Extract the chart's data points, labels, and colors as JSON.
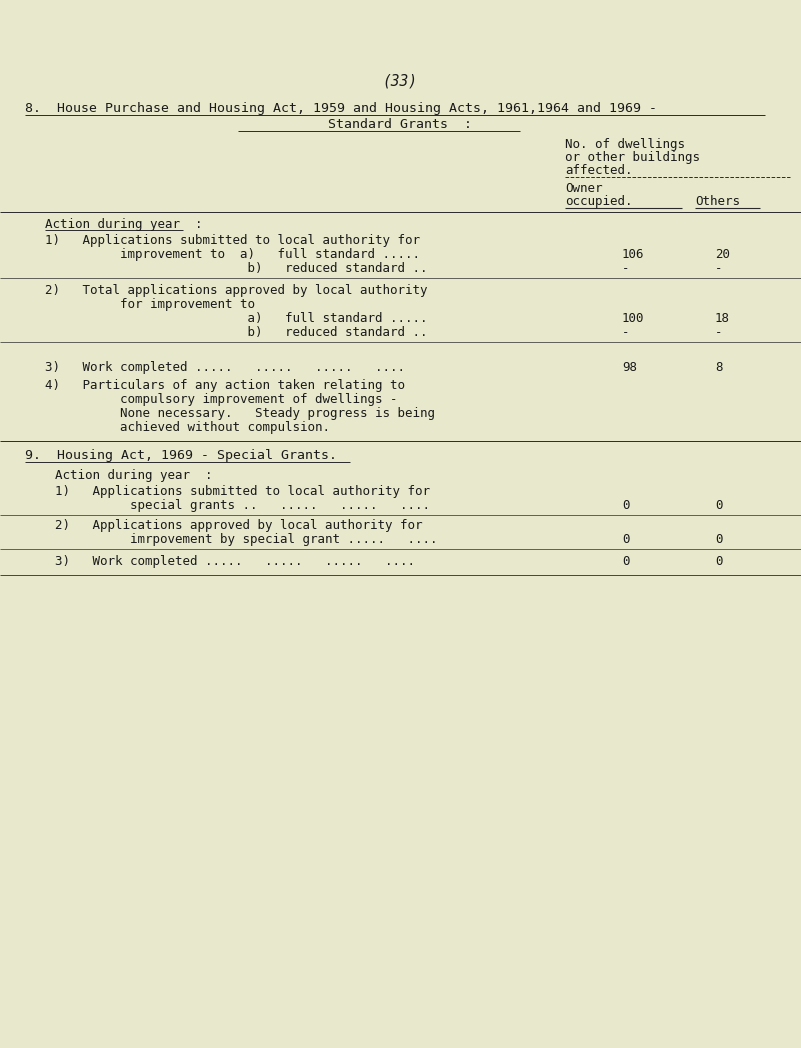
{
  "bg_color": "#e8e8cc",
  "text_color": "#1a1a1a",
  "page_number": "(33)",
  "section8_title": "8.  House Purchase and Housing Act, 1959 and Housing Acts, 1961,1964 and 1969 -",
  "section8_subtitle": "Standard Grants  :",
  "col_header_line1": "No. of dwellings",
  "col_header_line2": "or other buildings",
  "col_header_line3": "affected.",
  "col_owner": "Owner",
  "col_occupied": "occupied.",
  "col_others": "Others",
  "action_during_year": "Action during year  :",
  "item1_line1": "1)   Applications submitted to local authority for",
  "item1_line2a": "          improvement to  a)   full standard .....",
  "item1_line2b": "                           b)   reduced standard ..",
  "item1a_owner": "106",
  "item1a_others": "20",
  "item1b_owner": "-",
  "item1b_others": "-",
  "item2_line1": "2)   Total applications approved by local authority",
  "item2_line2": "          for improvement to",
  "item2_line3a": "                           a)   full standard .....",
  "item2_line3b": "                           b)   reduced standard ..",
  "item2a_owner": "100",
  "item2a_others": "18",
  "item2b_owner": "-",
  "item2b_others": "-",
  "item3_line1": "3)   Work completed .....   .....   .....   ....",
  "item3_owner": "98",
  "item3_others": "8",
  "item4_line1": "4)   Particulars of any action taken relating to",
  "item4_line2": "          compulsory improvement of dwellings -",
  "item4_line3": "          None necessary.   Steady progress is being",
  "item4_line4": "          achieved without compulsion.",
  "section9_title": "9.  Housing Act, 1969 - Special Grants.",
  "action_during_year2": "Action during year  :",
  "s9_item1_line1": "1)   Applications submitted to local authority for",
  "s9_item1_line2": "          special grants ..   .....   .....   ....",
  "s9_item1_owner": "0",
  "s9_item1_others": "0",
  "s9_item2_line1": "2)   Applications approved by local authority for",
  "s9_item2_line2": "          imrpovement by special grant .....   ....",
  "s9_item2_owner": "0",
  "s9_item2_others": "0",
  "s9_item3_line1": "3)   Work completed .....   .....   .....   ....",
  "s9_item3_owner": "0",
  "s9_item3_others": "0"
}
